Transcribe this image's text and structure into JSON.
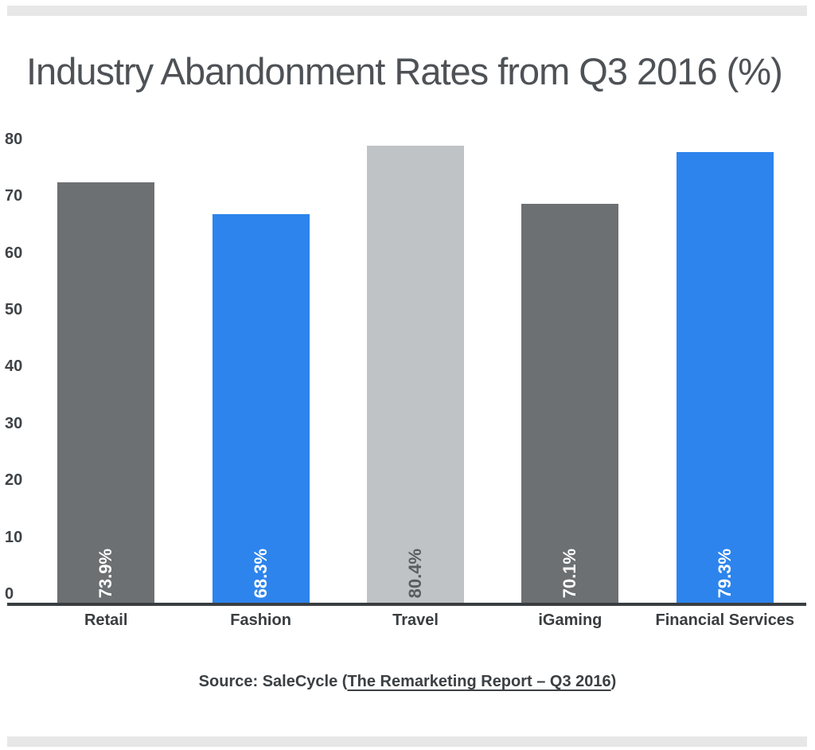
{
  "title": "Industry Abandonment Rates from Q3 2016 (%)",
  "chart_data": {
    "type": "bar",
    "title": "Industry Abandonment Rates from Q3 2016 (%)",
    "categories": [
      "Retail",
      "Fashion",
      "Travel",
      "iGaming",
      "Financial Services"
    ],
    "values": [
      73.9,
      68.3,
      80.4,
      70.1,
      79.3
    ],
    "bar_labels": [
      "73.9%",
      "68.3%",
      "80.4%",
      "70.1%",
      "79.3%"
    ],
    "bar_colors": [
      "#6c7073",
      "#2d84ec",
      "#c0c3c6",
      "#6c7073",
      "#2d84ec"
    ],
    "bar_label_colors": [
      "#ffffff",
      "#ffffff",
      "#595d60",
      "#ffffff",
      "#ffffff"
    ],
    "bar_label_rotation": "bottom-to-top",
    "y_ticks": [
      0,
      10,
      20,
      30,
      40,
      50,
      60,
      70,
      80
    ],
    "ylim": [
      0,
      80
    ],
    "xlabel": "",
    "ylabel": "",
    "grid": false,
    "legend": "none"
  },
  "source": {
    "prefix": "Source: SaleCycle (",
    "link_text": "The Remarketing Report – Q3 2016",
    "suffix": ")"
  },
  "colors": {
    "background": "#ffffff",
    "divider": "#e7e7e7",
    "axis_line": "#3a3e41",
    "title_text": "#4e5256",
    "tick_text": "#3f4347",
    "category_text": "#393d40",
    "source_text": "#3c4043"
  }
}
